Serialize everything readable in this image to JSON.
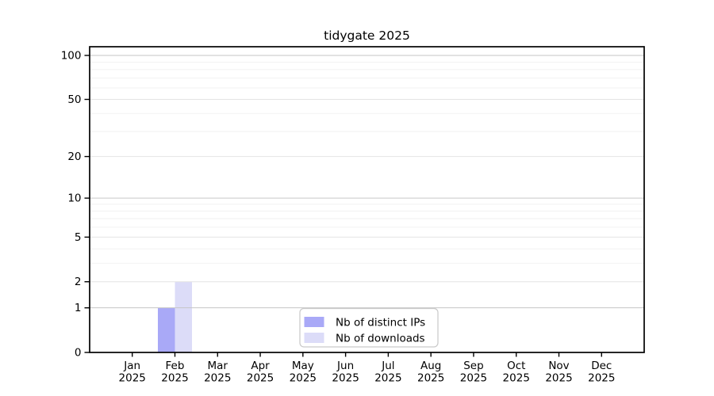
{
  "page": {
    "background": "#ffffff"
  },
  "chart_data": {
    "type": "bar",
    "title": "tidygate 2025",
    "categories": [
      "Jan 2025",
      "Feb 2025",
      "Mar 2025",
      "Apr 2025",
      "May 2025",
      "Jun 2025",
      "Jul 2025",
      "Aug 2025",
      "Sep 2025",
      "Oct 2025",
      "Nov 2025",
      "Dec 2025"
    ],
    "series": [
      {
        "name": "Nb of distinct IPs",
        "color": "#a9a9f7",
        "values": [
          0,
          1,
          0,
          0,
          0,
          0,
          0,
          0,
          0,
          0,
          0,
          0
        ]
      },
      {
        "name": "Nb of downloads",
        "color": "#dcdcf8",
        "values": [
          0,
          2,
          0,
          0,
          0,
          0,
          0,
          0,
          0,
          0,
          0,
          0
        ]
      }
    ],
    "xlabel": "",
    "ylabel": "",
    "y_axis": {
      "scale": "log1p",
      "ticks": [
        0,
        1,
        2,
        5,
        10,
        20,
        50,
        100
      ],
      "minor_gridlines": [
        3,
        4,
        6,
        7,
        8,
        9,
        30,
        40,
        60,
        70,
        80,
        90
      ],
      "emphasized_gridlines": [
        1,
        10,
        100
      ],
      "ylim": [
        0,
        114.6
      ]
    },
    "legend": {
      "position": "bottom-center"
    },
    "grid": true,
    "grid_colors": {
      "emphasis": "#c6c6c6",
      "major": "#e4e4e4",
      "minor": "#f2f2f2"
    }
  }
}
